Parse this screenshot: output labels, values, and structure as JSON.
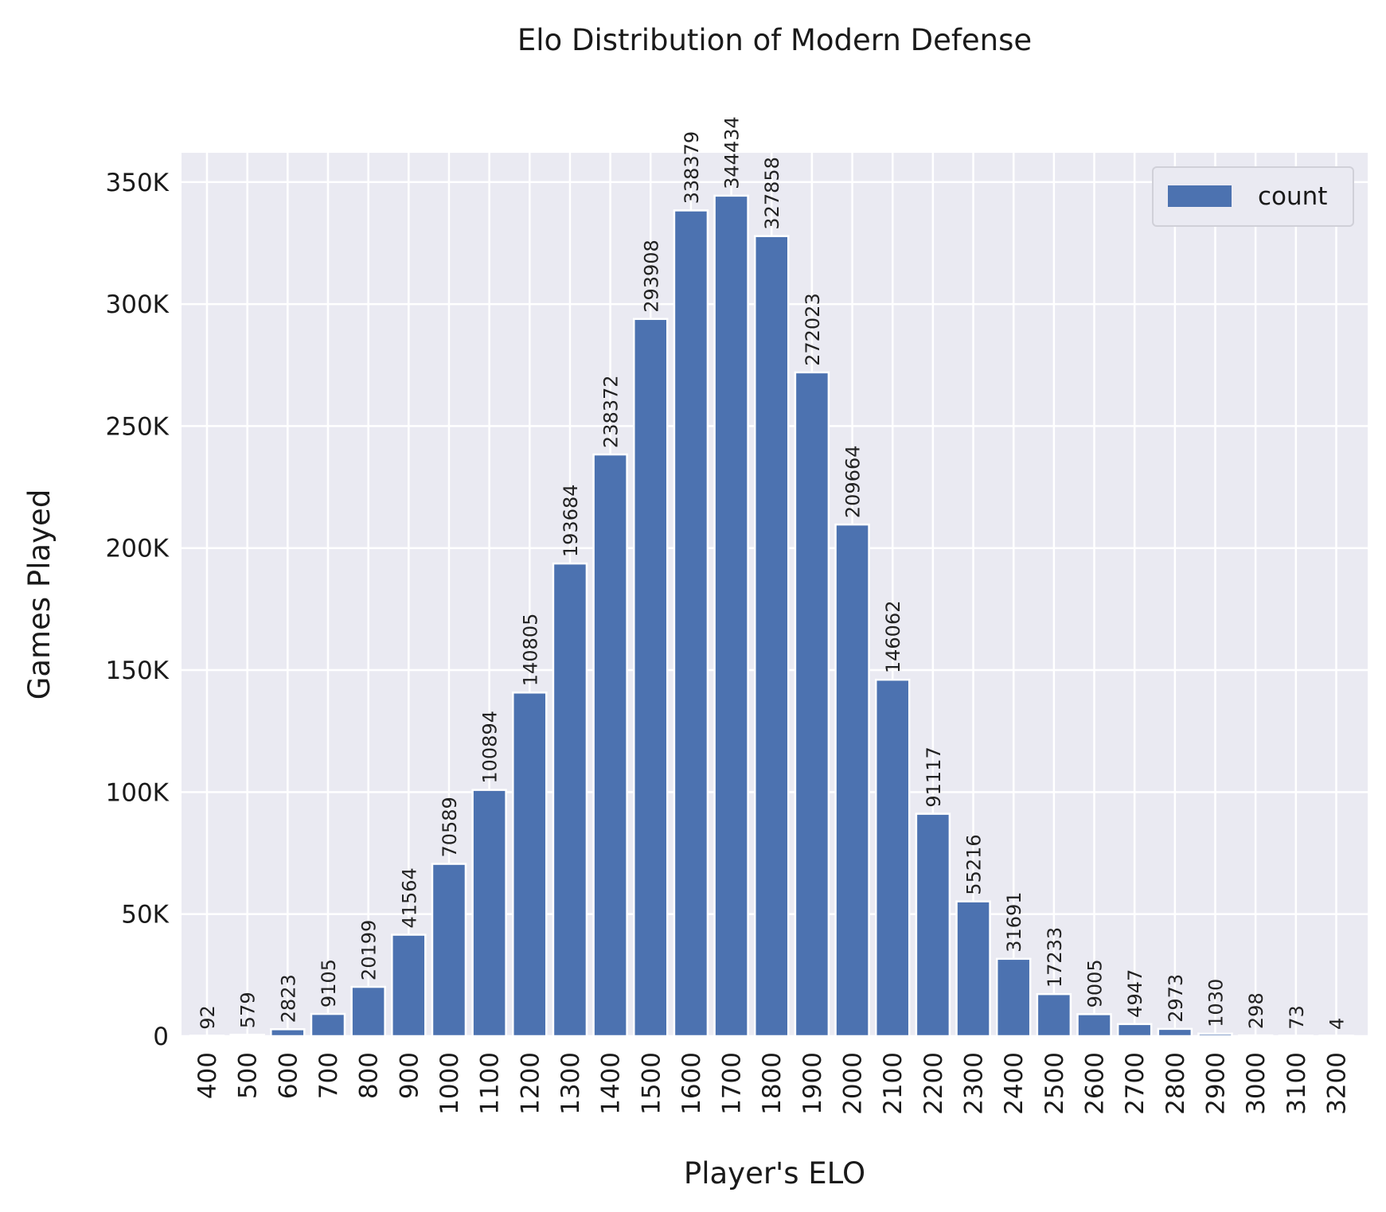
{
  "chart_data": {
    "type": "bar",
    "title": "Elo Distribution of Modern Defense",
    "xlabel": "Player's ELO",
    "ylabel": "Games Played",
    "categories": [
      "400",
      "500",
      "600",
      "700",
      "800",
      "900",
      "1000",
      "1100",
      "1200",
      "1300",
      "1400",
      "1500",
      "1600",
      "1700",
      "1800",
      "1900",
      "2000",
      "2100",
      "2200",
      "2300",
      "2400",
      "2500",
      "2600",
      "2700",
      "2800",
      "2900",
      "3000",
      "3100",
      "3200"
    ],
    "series": [
      {
        "name": "count",
        "values": [
          92,
          579,
          2823,
          9105,
          20199,
          41564,
          70589,
          100894,
          140805,
          193684,
          238372,
          293908,
          338379,
          344434,
          327858,
          272023,
          209664,
          146062,
          91117,
          55216,
          31691,
          17233,
          9005,
          4947,
          2973,
          1030,
          298,
          73,
          4
        ],
        "color": "#4c72b0"
      }
    ],
    "ylim": [
      0,
      362000
    ],
    "yticks": [
      0,
      50000,
      100000,
      150000,
      200000,
      250000,
      300000,
      350000
    ],
    "ytick_labels": [
      "0",
      "50K",
      "100K",
      "150K",
      "200K",
      "250K",
      "300K",
      "350K"
    ],
    "grid": true,
    "legend_position": "top-right",
    "background_color": "#eaeaf2",
    "grid_color": "#ffffff"
  }
}
